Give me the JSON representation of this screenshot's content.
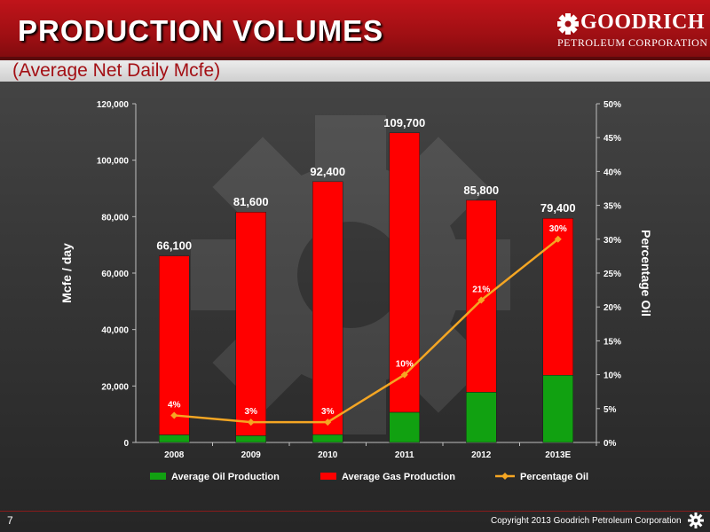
{
  "header": {
    "title": "PRODUCTION VOLUMES",
    "subtitle": "(Average Net Daily Mcfe)"
  },
  "logo": {
    "line1": "GOODRICH",
    "line2": "PETROLEUM CORPORATION"
  },
  "footer": {
    "page_number": "7",
    "copyright": "Copyright 2013 Goodrich Petroleum Corporation"
  },
  "colors": {
    "gas": "#ff0000",
    "oil": "#11a111",
    "percentage_line": "#f5a623",
    "header_red": "#b0121a"
  },
  "chart_data": {
    "type": "bar",
    "stacked": true,
    "categories": [
      "2008",
      "2009",
      "2010",
      "2011",
      "2012",
      "2013E"
    ],
    "series": [
      {
        "name": "Average Oil Production",
        "values": [
          2700,
          2400,
          2800,
          10700,
          17800,
          23800
        ]
      },
      {
        "name": "Average Gas Production",
        "values": [
          63400,
          79200,
          89600,
          99000,
          68000,
          55600
        ]
      }
    ],
    "totals": [
      "66,100",
      "81,600",
      "92,400",
      "109,700",
      "85,800",
      "79,400"
    ],
    "total_values": [
      66100,
      81600,
      92400,
      109700,
      85800,
      79400
    ],
    "line_series": {
      "name": "Percentage Oil",
      "axis": "right",
      "values": [
        4,
        3,
        3,
        10,
        21,
        30
      ],
      "labels": [
        "4%",
        "3%",
        "3%",
        "10%",
        "21%",
        "30%"
      ]
    },
    "ylabel": "Mcfe / day",
    "ylim": [
      0,
      120000
    ],
    "yticks": [
      "0",
      "20,000",
      "40,000",
      "60,000",
      "80,000",
      "100,000",
      "120,000"
    ],
    "y2label": "Percentage Oil",
    "y2lim": [
      0,
      50
    ],
    "y2ticks": [
      "0%",
      "5%",
      "10%",
      "15%",
      "20%",
      "25%",
      "30%",
      "35%",
      "40%",
      "45%",
      "50%"
    ],
    "legend_position": "bottom",
    "grid": false
  }
}
